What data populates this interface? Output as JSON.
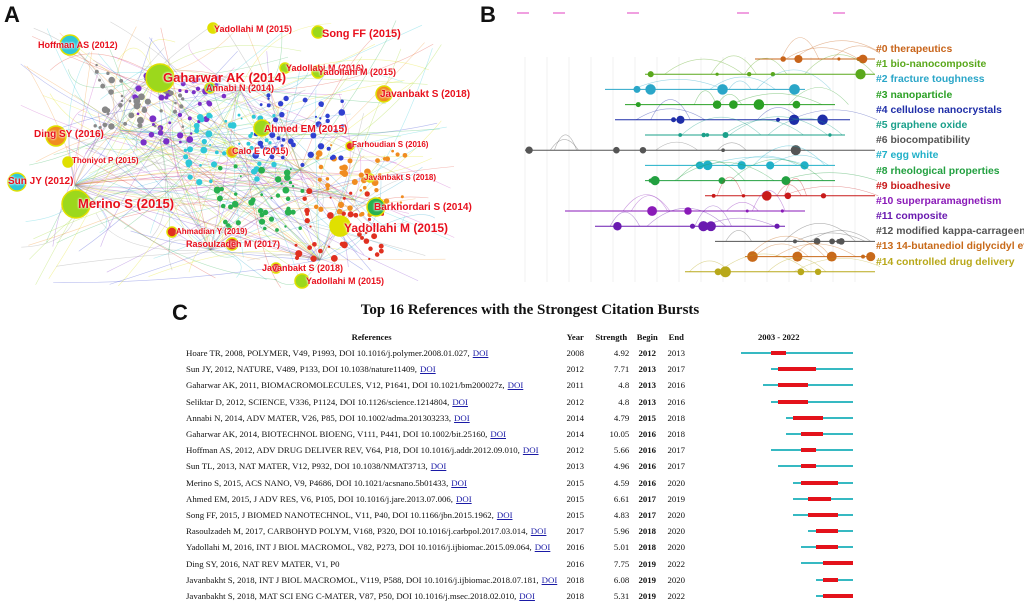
{
  "panel_labels": {
    "a": "A",
    "b": "B",
    "c": "C"
  },
  "panel_a": {
    "nodes": [
      {
        "label": "Hoffman AS (2012)"
      },
      {
        "label": "Yadollahi M (2015)"
      },
      {
        "label": "Song FF (2015)"
      },
      {
        "label": "Yadollahi M (2016)"
      },
      {
        "label": "Yadollahi M (2015)"
      },
      {
        "label": "Gaharwar AK (2014)"
      },
      {
        "label": "Annabi N (2014)"
      },
      {
        "label": "Javanbakt S (2018)"
      },
      {
        "label": "Ding SY (2016)"
      },
      {
        "label": "Ahmed EM (2015)"
      },
      {
        "label": "Farhoudian S (2016)"
      },
      {
        "label": "Thoniyot P (2015)"
      },
      {
        "label": "Calo E (2015)"
      },
      {
        "label": "Javanbakt S (2018)"
      },
      {
        "label": "Sun JY (2012)"
      },
      {
        "label": "Merino S (2015)"
      },
      {
        "label": "Barkhordari S (2014)"
      },
      {
        "label": "Ahmadian Y (2019)"
      },
      {
        "label": "Yadollahi M (2015)"
      },
      {
        "label": "Rasoulzadeh M (2017)"
      },
      {
        "label": "Javanbakt S (2018)"
      },
      {
        "label": "Yadollahi M (2015)"
      }
    ]
  },
  "panel_b": {
    "clusters": [
      {
        "label": "#0 therapeutics",
        "color": "#c8641a"
      },
      {
        "label": "#1 bio-nanocomposite",
        "color": "#5aa81c"
      },
      {
        "label": "#2 fracture toughness",
        "color": "#2aa6c8"
      },
      {
        "label": "#3 nanoparticle",
        "color": "#2aa024"
      },
      {
        "label": "#4 cellulose nanocrystals",
        "color": "#1f2ea8"
      },
      {
        "label": "#5 graphene oxide",
        "color": "#1aa08a"
      },
      {
        "label": "#6 biocompatibility",
        "color": "#555555"
      },
      {
        "label": "#7 egg white",
        "color": "#20b0c8"
      },
      {
        "label": "#8 rheological properties",
        "color": "#22a040"
      },
      {
        "label": "#9 bioadhesive",
        "color": "#c81a1a"
      },
      {
        "label": "#10 superparamagnetism",
        "color": "#8a1ab8"
      },
      {
        "label": "#11 composite",
        "color": "#6a1ab0"
      },
      {
        "label": "#12 modified kappa-carrageenan",
        "color": "#555555"
      },
      {
        "label": "#13 14-butanediol diglycidyl ether",
        "color": "#c86a1a"
      },
      {
        "label": "#14 controlled drug delivery",
        "color": "#b8a81a"
      }
    ]
  },
  "panel_c": {
    "title": "Top 16 References with the Strongest Citation Bursts",
    "headers": {
      "references": "References",
      "year": "Year",
      "strength": "Strength",
      "begin": "Begin",
      "end": "End",
      "range": "2003 - 2022"
    },
    "range_start": 2003,
    "range_end": 2022,
    "colors": {
      "track": "#36b9c2",
      "burst": "#e3121b",
      "link": "#1a1aa6"
    },
    "rows": [
      {
        "ref": "Hoare TR, 2008, POLYMER, V49, P1993, DOI 10.1016/j.polymer.2008.01.027,",
        "doi": "DOI",
        "year": 2008,
        "strength": "4.92",
        "begin": 2012,
        "end": 2013
      },
      {
        "ref": "Sun JY, 2012, NATURE, V489, P133, DOI 10.1038/nature11409,",
        "doi": "DOI",
        "year": 2012,
        "strength": "7.71",
        "begin": 2013,
        "end": 2017
      },
      {
        "ref": "Gaharwar AK, 2011, BIOMACROMOLECULES, V12, P1641, DOI 10.1021/bm200027z,",
        "doi": "DOI",
        "year": 2011,
        "strength": "4.8",
        "begin": 2013,
        "end": 2016
      },
      {
        "ref": "Seliktar D, 2012, SCIENCE, V336, P1124, DOI 10.1126/science.1214804,",
        "doi": "DOI",
        "year": 2012,
        "strength": "4.8",
        "begin": 2013,
        "end": 2016
      },
      {
        "ref": "Annabi N, 2014, ADV MATER, V26, P85, DOI 10.1002/adma.201303233,",
        "doi": "DOI",
        "year": 2014,
        "strength": "4.79",
        "begin": 2015,
        "end": 2018
      },
      {
        "ref": "Gaharwar AK, 2014, BIOTECHNOL BIOENG, V111, P441, DOI 10.1002/bit.25160,",
        "doi": "DOI",
        "year": 2014,
        "strength": "10.05",
        "begin": 2016,
        "end": 2018
      },
      {
        "ref": "Hoffman AS, 2012, ADV DRUG DELIVER REV, V64, P18, DOI 10.1016/j.addr.2012.09.010,",
        "doi": "DOI",
        "year": 2012,
        "strength": "5.66",
        "begin": 2016,
        "end": 2017
      },
      {
        "ref": "Sun TL, 2013, NAT MATER, V12, P932, DOI 10.1038/NMAT3713,",
        "doi": "DOI",
        "year": 2013,
        "strength": "4.96",
        "begin": 2016,
        "end": 2017
      },
      {
        "ref": "Merino S, 2015, ACS NANO, V9, P4686, DOI 10.1021/acsnano.5b01433,",
        "doi": "DOI",
        "year": 2015,
        "strength": "4.59",
        "begin": 2016,
        "end": 2020
      },
      {
        "ref": "Ahmed EM, 2015, J ADV RES, V6, P105, DOI 10.1016/j.jare.2013.07.006,",
        "doi": "DOI",
        "year": 2015,
        "strength": "6.61",
        "begin": 2017,
        "end": 2019
      },
      {
        "ref": "Song FF, 2015, J BIOMED NANOTECHNOL, V11, P40, DOI 10.1166/jbn.2015.1962,",
        "doi": "DOI",
        "year": 2015,
        "strength": "4.83",
        "begin": 2017,
        "end": 2020
      },
      {
        "ref": "Rasoulzadeh M, 2017, CARBOHYD POLYM, V168, P320, DOI 10.1016/j.carbpol.2017.03.014,",
        "doi": "DOI",
        "year": 2017,
        "strength": "5.96",
        "begin": 2018,
        "end": 2020
      },
      {
        "ref": "Yadollahi M, 2016, INT J BIOL MACROMOL, V82, P273, DOI 10.1016/j.ijbiomac.2015.09.064,",
        "doi": "DOI",
        "year": 2016,
        "strength": "5.01",
        "begin": 2018,
        "end": 2020
      },
      {
        "ref": "Ding SY, 2016, NAT REV MATER, V1, P0",
        "doi": "",
        "year": 2016,
        "strength": "7.75",
        "begin": 2019,
        "end": 2022
      },
      {
        "ref": "Javanbakht S, 2018, INT J BIOL MACROMOL, V119, P588, DOI 10.1016/j.ijbiomac.2018.07.181,",
        "doi": "DOI",
        "year": 2018,
        "strength": "6.08",
        "begin": 2019,
        "end": 2020
      },
      {
        "ref": "Javanbakht S, 2018, MAT SCI ENG C-MATER, V87, P50, DOI 10.1016/j.msec.2018.02.010,",
        "doi": "DOI",
        "year": 2018,
        "strength": "5.31",
        "begin": 2019,
        "end": 2022
      }
    ]
  }
}
